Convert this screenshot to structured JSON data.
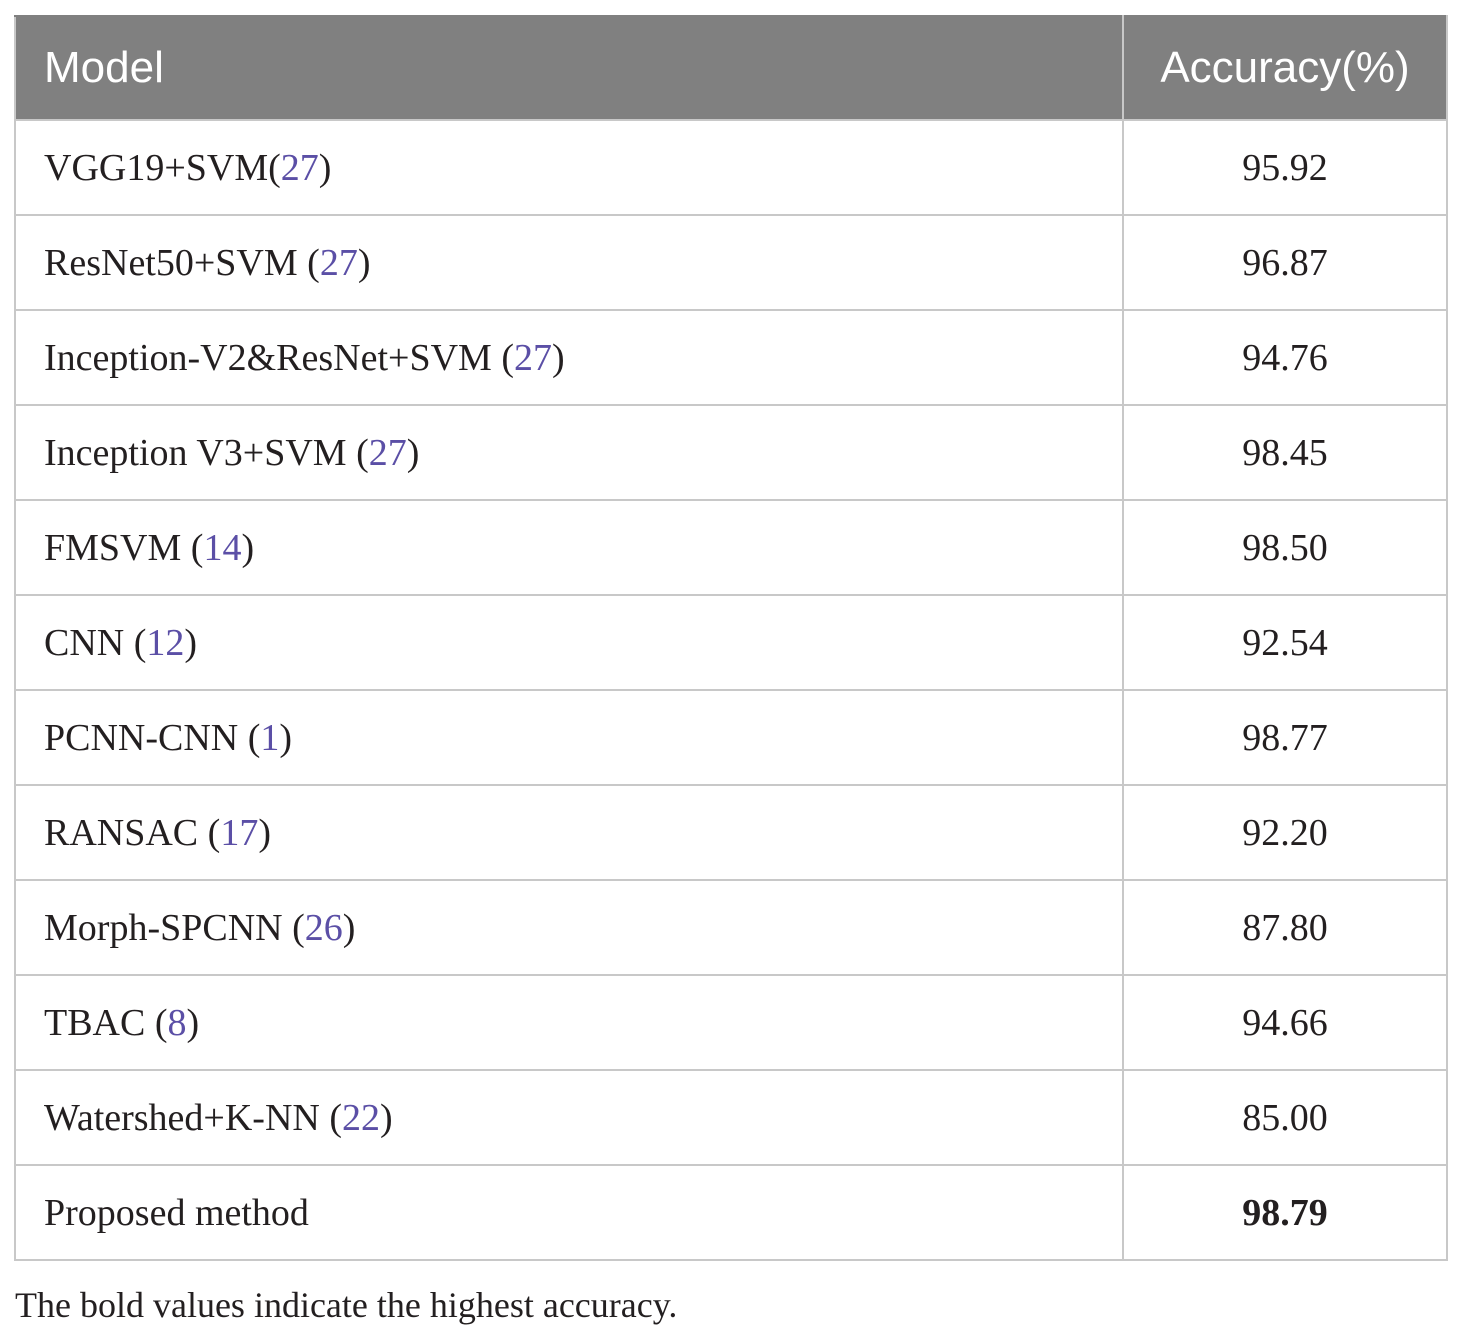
{
  "table": {
    "headers": {
      "model": "Model",
      "accuracy": "Accuracy(%)"
    },
    "rows": [
      {
        "model": "VGG19+SVM",
        "sep": "",
        "ref": "27",
        "accuracy": "95.92",
        "bold": false
      },
      {
        "model": "ResNet50+SVM",
        "sep": " ",
        "ref": "27",
        "accuracy": "96.87",
        "bold": false
      },
      {
        "model": "Inception-V2&ResNet+SVM",
        "sep": " ",
        "ref": "27",
        "accuracy": "94.76",
        "bold": false
      },
      {
        "model": "Inception V3+SVM",
        "sep": " ",
        "ref": "27",
        "accuracy": "98.45",
        "bold": false
      },
      {
        "model": "FMSVM",
        "sep": " ",
        "ref": "14",
        "accuracy": "98.50",
        "bold": false
      },
      {
        "model": "CNN",
        "sep": " ",
        "ref": "12",
        "accuracy": "92.54",
        "bold": false
      },
      {
        "model": "PCNN-CNN",
        "sep": " ",
        "ref": "1",
        "accuracy": "98.77",
        "bold": false
      },
      {
        "model": "RANSAC",
        "sep": " ",
        "ref": "17",
        "accuracy": "92.20",
        "bold": false
      },
      {
        "model": "Morph-SPCNN",
        "sep": " ",
        "ref": "26",
        "accuracy": "87.80",
        "bold": false
      },
      {
        "model": "TBAC",
        "sep": " ",
        "ref": "8",
        "accuracy": "94.66",
        "bold": false
      },
      {
        "model": "Watershed+K-NN",
        "sep": " ",
        "ref": "22",
        "accuracy": "85.00",
        "bold": false
      },
      {
        "model": "Proposed method",
        "sep": "",
        "ref": "",
        "accuracy": "98.79",
        "bold": true
      }
    ]
  },
  "footnote": "The bold values indicate the highest accuracy.",
  "colors": {
    "header_bg": "#808080",
    "header_text": "#ffffff",
    "reference_link": "#5b4fa6",
    "grid_line": "#c8c8c8",
    "body_text": "#231f20"
  }
}
